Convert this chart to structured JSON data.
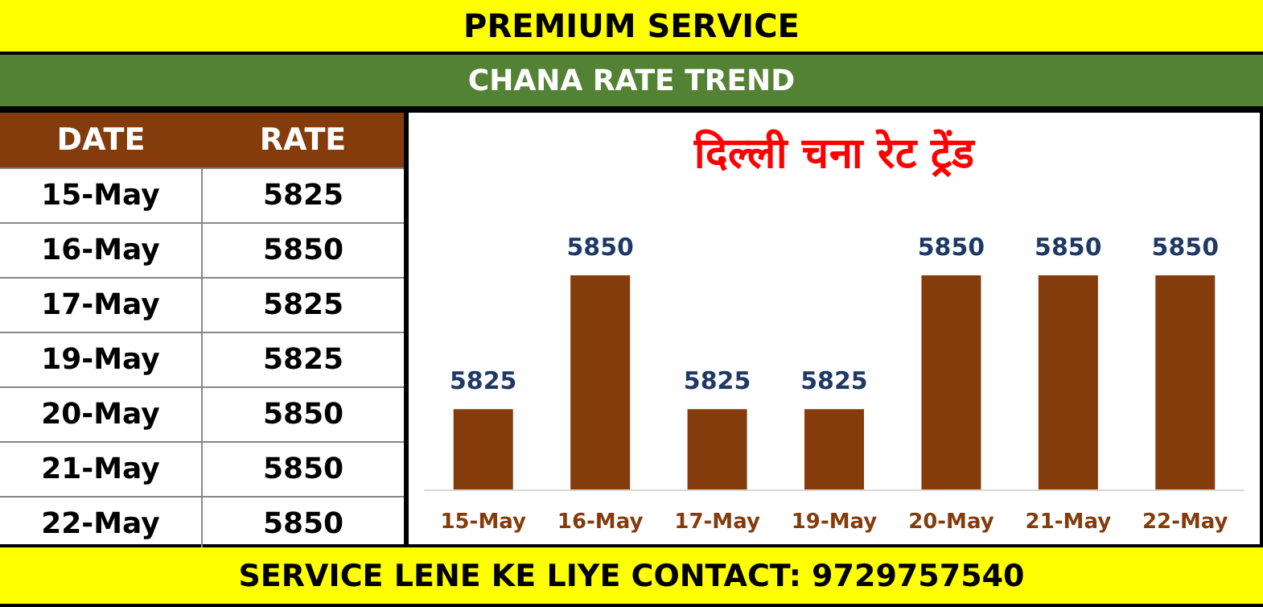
{
  "chart_data": {
    "type": "bar",
    "title": "दिल्ली चना रेट ट्रेंड",
    "annotations": [
      "PREMIUM SERVICE",
      "CHANA RATE TREND",
      "SERVICE LENE KE LIYE CONTACT: 9729757540",
      "DATE",
      "RATE"
    ],
    "categories": [
      "15-May",
      "16-May",
      "17-May",
      "19-May",
      "20-May",
      "21-May",
      "22-May"
    ],
    "values": [
      5825,
      5850,
      5825,
      5825,
      5850,
      5850,
      5850
    ],
    "value_labels": [
      "5825",
      "5850",
      "5825",
      "5825",
      "5850",
      "5850",
      "5850"
    ],
    "ylim": [
      5810,
      5850
    ],
    "color": "#843c0c",
    "grid": false
  }
}
